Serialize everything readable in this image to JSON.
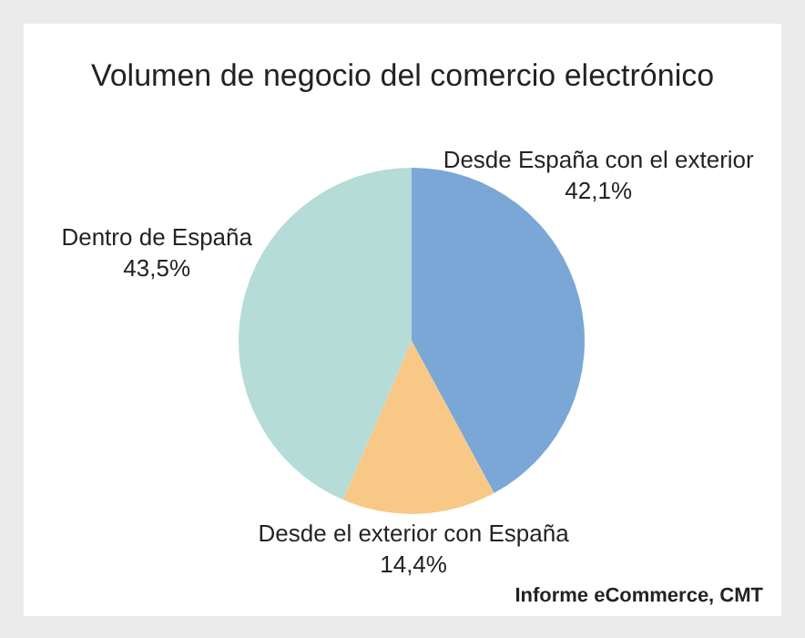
{
  "chart_data": {
    "type": "pie",
    "title": "Volumen de negocio del comercio electrónico",
    "categories": [
      "Desde España con el exterior",
      "Desde el exterior con España",
      "Dentro de España"
    ],
    "values": [
      42.1,
      14.4,
      43.5
    ],
    "value_labels": [
      "42,1%",
      "14,4%",
      "43,5%"
    ],
    "colors": [
      "#7ba7d7",
      "#f8c886",
      "#b5dcd6"
    ],
    "annotations": [
      "Informe eCommerce, CMT"
    ]
  }
}
